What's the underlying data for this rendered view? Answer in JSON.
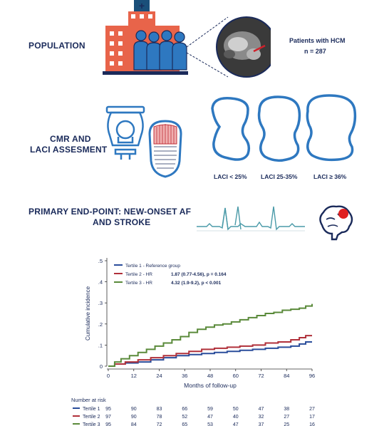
{
  "population": {
    "label": "POPULATION",
    "patients_label": "Patients with HCM",
    "n_label": "n = 287"
  },
  "cmr": {
    "label_line1": "CMR AND",
    "label_line2": "LACI ASSESMENT",
    "laci_labels": [
      "LACI < 25%",
      "LACI 25-35%",
      "LACI ≥ 36%"
    ]
  },
  "endpoint": {
    "label_line1": "PRIMARY END-POINT: NEW-ONSET AF",
    "label_line2": "AND STROKE"
  },
  "colors": {
    "navy": "#1a2a5a",
    "blue": "#2e78c0",
    "hospital": "#e8644a",
    "tertile1": "#2a4d9b",
    "tertile2": "#b0303a",
    "tertile3": "#5a8a3a"
  },
  "chart_data": {
    "type": "line",
    "xlabel": "Months of follow-up",
    "ylabel": "Cumulative incidence",
    "x_ticks": [
      0,
      12,
      24,
      36,
      48,
      60,
      72,
      84,
      96
    ],
    "y_ticks": [
      0,
      0.1,
      0.2,
      0.3,
      0.4,
      0.5
    ],
    "y_tick_labels": [
      "0",
      ".1",
      ".2",
      ".3",
      ".4",
      ".5"
    ],
    "xlim": [
      0,
      96
    ],
    "ylim": [
      0,
      0.5
    ],
    "series": [
      {
        "name": "Tertile 1",
        "legend": "Tertile 1  - Reference group",
        "hr_text": "",
        "x": [
          0,
          3,
          8,
          14,
          20,
          26,
          32,
          38,
          44,
          50,
          56,
          62,
          68,
          74,
          80,
          86,
          90,
          93,
          96
        ],
        "y": [
          0,
          0.01,
          0.015,
          0.02,
          0.03,
          0.04,
          0.05,
          0.055,
          0.06,
          0.065,
          0.07,
          0.075,
          0.08,
          0.085,
          0.09,
          0.095,
          0.105,
          0.115,
          0.115
        ]
      },
      {
        "name": "Tertile 2",
        "legend": "Tertile 2  - HR",
        "hr_text": "1.87 (0.77-4.56), p = 0.164",
        "x": [
          0,
          3,
          8,
          14,
          20,
          26,
          32,
          38,
          44,
          50,
          56,
          62,
          68,
          74,
          80,
          86,
          90,
          93,
          96
        ],
        "y": [
          0,
          0.01,
          0.02,
          0.03,
          0.04,
          0.05,
          0.06,
          0.07,
          0.08,
          0.085,
          0.09,
          0.095,
          0.1,
          0.11,
          0.115,
          0.125,
          0.135,
          0.145,
          0.145
        ]
      },
      {
        "name": "Tertile 3",
        "legend": "Tertile 3  - HR",
        "hr_text": "4.32 (1.9-9.2), p < 0.001",
        "x": [
          0,
          3,
          6,
          10,
          14,
          18,
          22,
          26,
          30,
          34,
          38,
          42,
          46,
          50,
          54,
          58,
          62,
          66,
          70,
          74,
          78,
          82,
          86,
          90,
          93,
          96
        ],
        "y": [
          0,
          0.02,
          0.035,
          0.05,
          0.065,
          0.08,
          0.095,
          0.11,
          0.125,
          0.14,
          0.16,
          0.175,
          0.185,
          0.195,
          0.2,
          0.21,
          0.22,
          0.23,
          0.24,
          0.25,
          0.255,
          0.265,
          0.27,
          0.275,
          0.285,
          0.295
        ]
      }
    ],
    "risk_table": {
      "title": "Number at risk",
      "rows": [
        {
          "name": "Tertile 1",
          "values": [
            95,
            90,
            83,
            66,
            59,
            50,
            47,
            38,
            27
          ]
        },
        {
          "name": "Tertile 2",
          "values": [
            97,
            90,
            78,
            52,
            47,
            40,
            32,
            27,
            17
          ]
        },
        {
          "name": "Tertile 3",
          "values": [
            95,
            84,
            72,
            65,
            53,
            47,
            37,
            25,
            16
          ]
        }
      ]
    }
  }
}
